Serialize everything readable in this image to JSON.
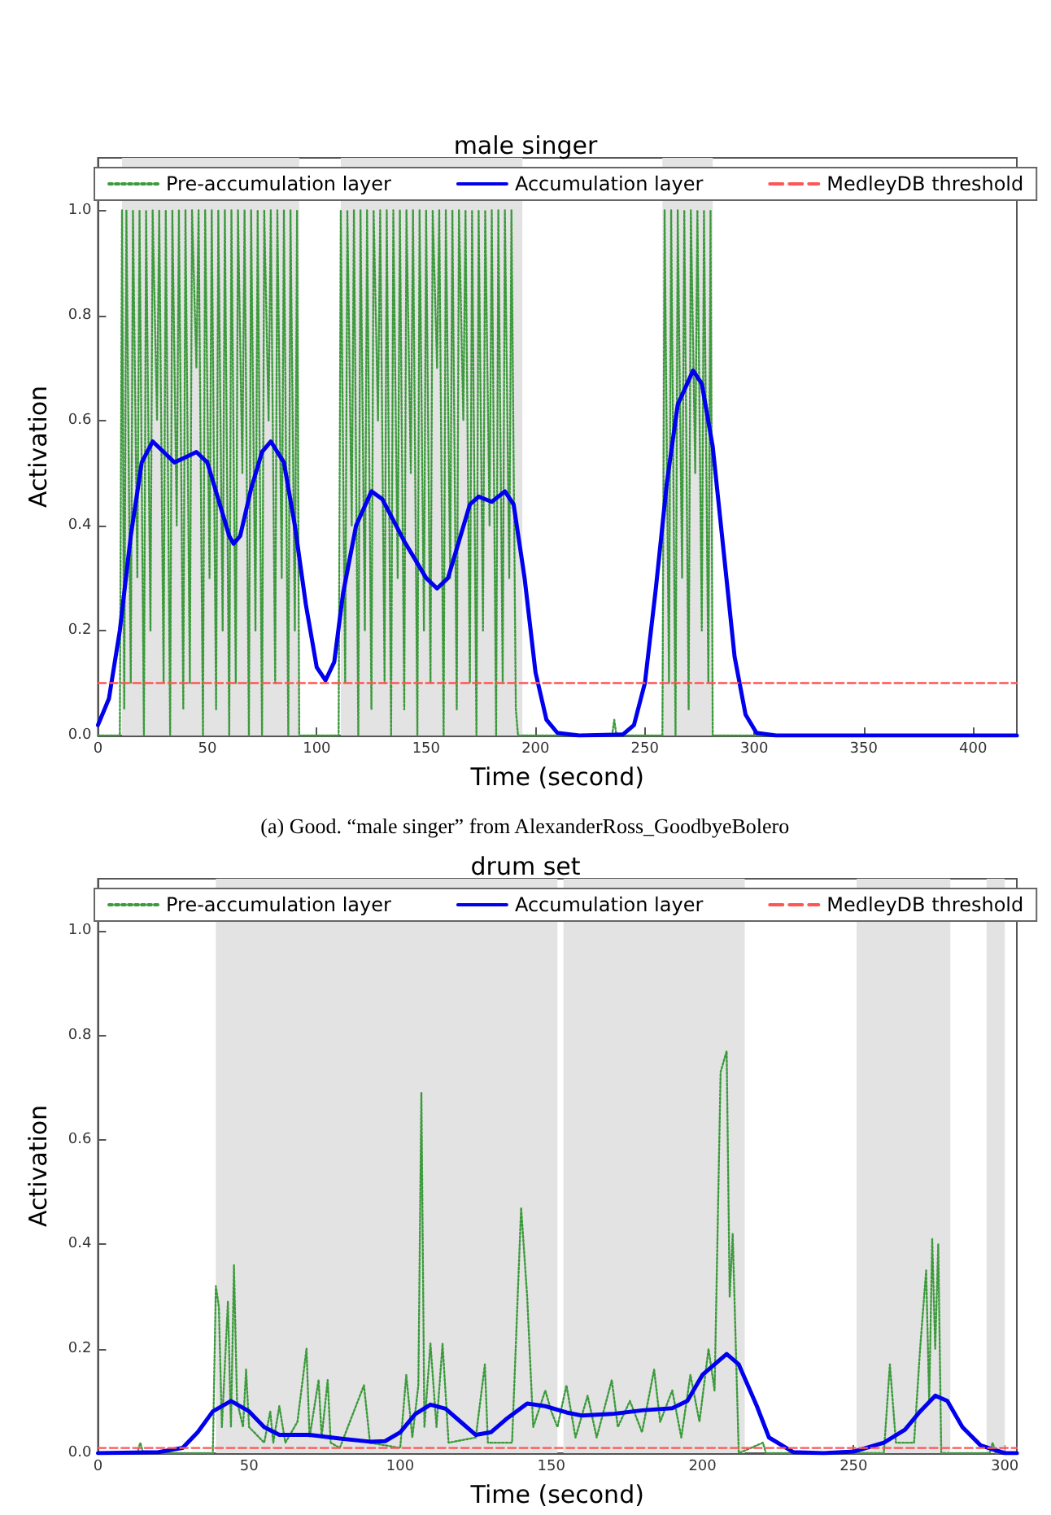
{
  "chart_data": [
    {
      "type": "line",
      "title": "male singer",
      "xlabel": "Time (second)",
      "ylabel": "Activation",
      "annotations": [
        "(a) Good. “male singer” from AlexanderRoss_GoodbyeBolero"
      ],
      "xlim": [
        0,
        420
      ],
      "xticks": [
        0,
        50,
        100,
        150,
        200,
        250,
        300,
        350,
        400
      ],
      "ylim": [
        0,
        1.1
      ],
      "yticks": [
        {
          "value": 0,
          "label": "0.0"
        },
        {
          "value": 0.2,
          "label": "0.2"
        },
        {
          "value": 0.4,
          "label": "0.4"
        },
        {
          "value": 0.6,
          "label": "0.6"
        },
        {
          "value": 0.8,
          "label": "0.8"
        },
        {
          "value": 1,
          "label": "1.0"
        }
      ],
      "grid": false,
      "legend": "top",
      "marker": "none",
      "bands": [
        {
          "axis": "x",
          "from": 11,
          "to": 92,
          "color": "#e3e3e3"
        },
        {
          "axis": "x",
          "from": 111,
          "to": 194,
          "color": "#e3e3e3"
        },
        {
          "axis": "x",
          "from": 258,
          "to": 281,
          "color": "#e3e3e3"
        }
      ],
      "series": [
        {
          "name": "Pre-accumulation layer",
          "color": "#3c9a3c",
          "line_style": "dotted",
          "x": [
            0,
            10,
            11,
            12,
            13,
            15,
            16,
            18,
            19,
            21,
            22,
            24,
            25,
            27,
            28,
            30,
            31,
            33,
            34,
            36,
            37,
            39,
            40,
            42,
            43,
            45,
            46,
            48,
            49,
            51,
            52,
            54,
            55,
            57,
            58,
            60,
            61,
            63,
            64,
            66,
            67,
            69,
            70,
            72,
            73,
            75,
            76,
            78,
            79,
            81,
            82,
            84,
            85,
            87,
            88,
            90,
            91,
            92,
            110,
            111,
            113,
            114,
            116,
            117,
            119,
            120,
            122,
            123,
            125,
            126,
            128,
            129,
            131,
            132,
            134,
            135,
            137,
            138,
            140,
            141,
            143,
            144,
            146,
            147,
            149,
            150,
            152,
            153,
            155,
            156,
            158,
            159,
            161,
            162,
            164,
            165,
            167,
            168,
            170,
            171,
            173,
            174,
            176,
            177,
            179,
            180,
            182,
            183,
            185,
            186,
            188,
            189,
            191,
            192,
            235,
            236,
            237,
            258,
            259,
            261,
            262,
            264,
            265,
            267,
            268,
            270,
            271,
            273,
            274,
            276,
            277,
            279,
            280,
            281,
            420
          ],
          "values": [
            0,
            0,
            1,
            0.05,
            1,
            0.1,
            1,
            0.3,
            1,
            0,
            1,
            0.2,
            1,
            0.6,
            1,
            0.1,
            1,
            0,
            1,
            0.4,
            1,
            0.05,
            1,
            0.1,
            1,
            0.7,
            1,
            0,
            1,
            0.3,
            1,
            0.05,
            1,
            0.2,
            1,
            0,
            1,
            0.1,
            1,
            0.5,
            1,
            0,
            1,
            0.2,
            1,
            0,
            1,
            0.6,
            1,
            0.1,
            1,
            0.3,
            1,
            0,
            1,
            0.2,
            1,
            0,
            0,
            1,
            0.1,
            1,
            0.4,
            1,
            0,
            1,
            0.2,
            1,
            0.05,
            1,
            0.6,
            1,
            0.1,
            1,
            0,
            1,
            0.3,
            1,
            0.05,
            1,
            0.5,
            1,
            0,
            1,
            0.2,
            1,
            0.1,
            1,
            0.7,
            1,
            0,
            1,
            0.3,
            1,
            0.05,
            1,
            0.6,
            1,
            0.1,
            1,
            0,
            1,
            0.2,
            1,
            0.4,
            1,
            0,
            1,
            0.1,
            1,
            0.3,
            1,
            0.05,
            0,
            0,
            0.03,
            0,
            0,
            1,
            0.1,
            1,
            0,
            1,
            0.3,
            1,
            0.05,
            1,
            0.5,
            1,
            0.2,
            1,
            0.1,
            1,
            0,
            0
          ]
        },
        {
          "name": "Accumulation layer",
          "color": "#0000ee",
          "line_style": "solid",
          "x": [
            0,
            5,
            10,
            15,
            20,
            25,
            30,
            35,
            40,
            45,
            50,
            55,
            60,
            62,
            65,
            70,
            75,
            79,
            85,
            90,
            95,
            100,
            104,
            108,
            112,
            118,
            125,
            130,
            140,
            150,
            155,
            160,
            165,
            170,
            174,
            180,
            186,
            190,
            195,
            200,
            205,
            210,
            220,
            240,
            245,
            250,
            255,
            260,
            265,
            272,
            276,
            281,
            286,
            291,
            296,
            301,
            310,
            420
          ],
          "values": [
            0.02,
            0.07,
            0.2,
            0.38,
            0.52,
            0.56,
            0.54,
            0.52,
            0.53,
            0.54,
            0.52,
            0.45,
            0.38,
            0.365,
            0.38,
            0.47,
            0.54,
            0.56,
            0.52,
            0.4,
            0.25,
            0.13,
            0.105,
            0.14,
            0.27,
            0.4,
            0.465,
            0.45,
            0.37,
            0.3,
            0.28,
            0.3,
            0.37,
            0.44,
            0.455,
            0.445,
            0.465,
            0.44,
            0.3,
            0.12,
            0.03,
            0.005,
            0,
            0.002,
            0.02,
            0.1,
            0.28,
            0.48,
            0.63,
            0.695,
            0.67,
            0.55,
            0.35,
            0.15,
            0.04,
            0.005,
            0,
            0
          ]
        },
        {
          "name": "MedleyDB threshold",
          "color": "#ff5555",
          "line_style": "dashed",
          "x": [
            0,
            420
          ],
          "values": [
            0.1,
            0.1
          ]
        }
      ]
    },
    {
      "type": "line",
      "title": "drum set",
      "xlabel": "Time (second)",
      "ylabel": "Activation",
      "xlim": [
        0,
        304
      ],
      "xticks": [
        0,
        50,
        100,
        150,
        200,
        250,
        300
      ],
      "ylim": [
        0,
        1.1
      ],
      "yticks": [
        {
          "value": 0,
          "label": "0.0"
        },
        {
          "value": 0.2,
          "label": "0.2"
        },
        {
          "value": 0.4,
          "label": "0.4"
        },
        {
          "value": 0.6,
          "label": "0.6"
        },
        {
          "value": 0.8,
          "label": "0.8"
        },
        {
          "value": 1,
          "label": "1.0"
        }
      ],
      "grid": false,
      "legend": "top",
      "marker": "none",
      "bands": [
        {
          "axis": "x",
          "from": 39,
          "to": 152,
          "color": "#e3e3e3"
        },
        {
          "axis": "x",
          "from": 154,
          "to": 214,
          "color": "#e3e3e3"
        },
        {
          "axis": "x",
          "from": 251,
          "to": 282,
          "color": "#e3e3e3"
        },
        {
          "axis": "x",
          "from": 294,
          "to": 300,
          "color": "#e3e3e3"
        }
      ],
      "series": [
        {
          "name": "Pre-accumulation layer",
          "color": "#3c9a3c",
          "line_style": "dotted",
          "x": [
            0,
            13,
            14,
            15,
            38,
            39,
            40,
            41,
            43,
            44,
            45,
            46,
            48,
            49,
            50,
            55,
            57,
            58,
            60,
            62,
            66,
            69,
            70,
            73,
            74,
            76,
            77,
            80,
            88,
            90,
            100,
            102,
            104,
            106,
            107,
            108,
            110,
            112,
            114,
            116,
            125,
            128,
            129,
            137,
            140,
            142,
            144,
            148,
            150,
            152,
            155,
            158,
            162,
            165,
            170,
            172,
            176,
            180,
            184,
            186,
            190,
            193,
            196,
            199,
            202,
            204,
            206,
            208,
            209,
            210,
            212,
            220,
            221,
            260,
            262,
            264,
            270,
            272,
            274,
            275,
            276,
            277,
            278,
            279,
            295,
            296,
            297,
            304
          ],
          "values": [
            0,
            0,
            0.02,
            0,
            0,
            0.32,
            0.28,
            0.05,
            0.29,
            0.05,
            0.36,
            0.1,
            0.05,
            0.16,
            0.05,
            0.02,
            0.08,
            0.02,
            0.09,
            0.02,
            0.06,
            0.2,
            0.03,
            0.14,
            0.03,
            0.14,
            0.02,
            0.01,
            0.13,
            0.02,
            0.01,
            0.15,
            0.03,
            0.13,
            0.69,
            0.05,
            0.21,
            0.05,
            0.21,
            0.02,
            0.03,
            0.17,
            0.02,
            0.02,
            0.47,
            0.3,
            0.05,
            0.12,
            0.08,
            0.05,
            0.13,
            0.03,
            0.11,
            0.03,
            0.14,
            0.05,
            0.1,
            0.04,
            0.16,
            0.06,
            0.12,
            0.03,
            0.15,
            0.06,
            0.2,
            0.12,
            0.73,
            0.77,
            0.3,
            0.42,
            0,
            0.02,
            0,
            0,
            0.17,
            0.02,
            0.02,
            0.2,
            0.35,
            0.1,
            0.41,
            0.2,
            0.4,
            0,
            0,
            0.02,
            0,
            0
          ]
        },
        {
          "name": "Accumulation layer",
          "color": "#0000ee",
          "line_style": "solid",
          "x": [
            0,
            20,
            28,
            33,
            38,
            44,
            50,
            55,
            60,
            70,
            80,
            90,
            95,
            100,
            105,
            110,
            115,
            120,
            125,
            130,
            135,
            142,
            148,
            155,
            160,
            170,
            180,
            190,
            195,
            200,
            208,
            212,
            218,
            222,
            230,
            240,
            250,
            260,
            267,
            272,
            277,
            281,
            286,
            292,
            300,
            304
          ],
          "values": [
            0,
            0.002,
            0.01,
            0.04,
            0.08,
            0.1,
            0.08,
            0.05,
            0.035,
            0.035,
            0.028,
            0.022,
            0.023,
            0.04,
            0.075,
            0.093,
            0.085,
            0.06,
            0.035,
            0.04,
            0.065,
            0.095,
            0.09,
            0.078,
            0.072,
            0.075,
            0.082,
            0.086,
            0.1,
            0.15,
            0.19,
            0.17,
            0.09,
            0.03,
            0.002,
            0,
            0.003,
            0.02,
            0.045,
            0.08,
            0.11,
            0.1,
            0.05,
            0.015,
            0,
            0
          ]
        },
        {
          "name": "MedleyDB threshold",
          "color": "#ff5555",
          "line_style": "dashed",
          "x": [
            0,
            304
          ],
          "values": [
            0.01,
            0.01
          ]
        }
      ]
    }
  ]
}
